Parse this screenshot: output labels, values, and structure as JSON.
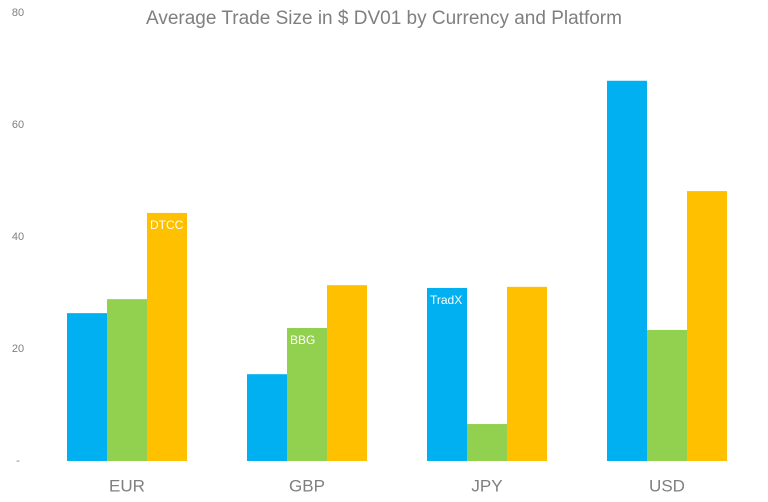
{
  "chart_data": {
    "type": "bar",
    "title": "Average Trade Size in $ DV01 by Currency and Platform",
    "categories": [
      "EUR",
      "GBP",
      "JPY",
      "USD"
    ],
    "series": [
      {
        "name": "TradX",
        "color": "#00b0f0",
        "values": [
          26.4,
          15.5,
          30.9,
          67.9
        ]
      },
      {
        "name": "BBG",
        "color": "#92d050",
        "values": [
          28.9,
          23.75,
          6.6,
          23.4
        ]
      },
      {
        "name": "DTCC",
        "color": "#ffc000",
        "values": [
          44.3,
          31.4,
          31.1,
          48.2
        ]
      }
    ],
    "ylim": [
      0,
      80
    ],
    "yticks": [
      {
        "value": 0,
        "label": "-"
      },
      20,
      40,
      60,
      80
    ],
    "grid": false
  }
}
